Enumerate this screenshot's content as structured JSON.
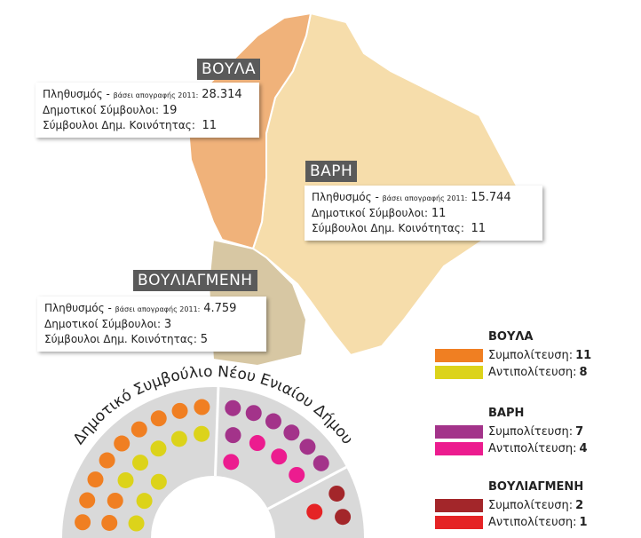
{
  "regions": [
    {
      "name": "ΒΟΥΛΑ",
      "population_label": "Πληθυσμός -",
      "census_note": "βάσει απογραφής 2011:",
      "population": "28.314",
      "councillors_label": "Δημοτικοί Σύμβουλοι:",
      "councillors": "19",
      "community_label": "Σύμβουλοι Δημ. Κοινότητας:",
      "community": "11"
    },
    {
      "name": "ΒΑΡΗ",
      "population_label": "Πληθυσμός -",
      "census_note": "βάσει απογραφής 2011:",
      "population": "15.744",
      "councillors_label": "Δημοτικοί Σύμβουλοι:",
      "councillors": "11",
      "community_label": "Σύμβουλοι Δημ. Κοινότητας:",
      "community": "11"
    },
    {
      "name": "ΒΟΥΛΙΑΓΜΕΝΗ",
      "population_label": "Πληθυσμός -",
      "census_note": "βάσει απογραφής 2011:",
      "population": "4.759",
      "councillors_label": "Δημοτικοί Σύμβουλοι:",
      "councillors": "3",
      "community_label": "Σύμβουλοι Δημ. Κοινότητας:",
      "community": "5"
    }
  ],
  "council": {
    "title": "Δημοτικό Συμβούλιο Νέου Ενιαίου Δήμου",
    "parties": [
      {
        "region": "ΒΟΥΛΑ",
        "groups": [
          {
            "label": "Συμπολίτευση:",
            "seats": 11,
            "color": "#f07f22"
          },
          {
            "label": "Αντιπολίτευση:",
            "seats": 8,
            "color": "#dcd31a"
          }
        ]
      },
      {
        "region": "ΒΑΡΗ",
        "groups": [
          {
            "label": "Συμπολίτευση:",
            "seats": 7,
            "color": "#a3338a"
          },
          {
            "label": "Αντιπολίτευση:",
            "seats": 4,
            "color": "#ec1c8f"
          }
        ]
      },
      {
        "region": "ΒΟΥΛΙΑΓΜΕΝΗ",
        "groups": [
          {
            "label": "Συμπολίτευση:",
            "seats": 2,
            "color": "#a3262a"
          },
          {
            "label": "Αντιπολίτευση:",
            "seats": 1,
            "color": "#e52325"
          }
        ]
      }
    ]
  }
}
